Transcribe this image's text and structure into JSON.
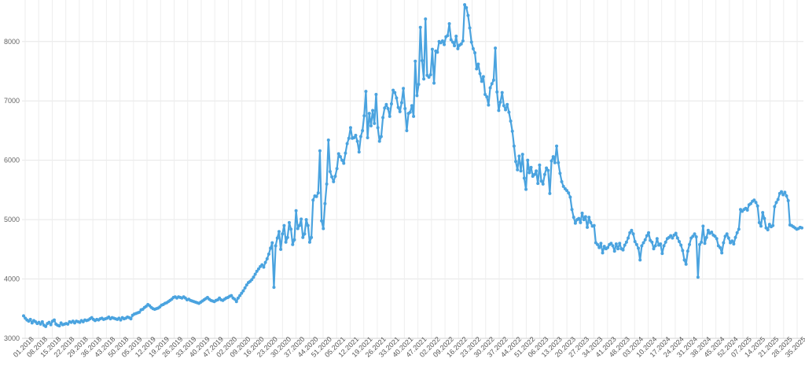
{
  "chart_data": {
    "type": "line",
    "title": "",
    "xlabel": "",
    "ylabel": "",
    "grid": true,
    "legend": "none",
    "ylim": [
      3000,
      8700
    ],
    "yticks": [
      3000,
      4000,
      5000,
      6000,
      7000,
      8000
    ],
    "x_tick_labels": [
      "01.2018",
      "08.2018",
      "15.2018",
      "22.2018",
      "29.2018",
      "36.2018",
      "43.2018",
      "50.2018",
      "05.2019",
      "12.2019",
      "19.2019",
      "26.2019",
      "33.2019",
      "40.2019",
      "47.2019",
      "02.2020",
      "09.2020",
      "16.2020",
      "23.2020",
      "30.2020",
      "37.2020",
      "44.2020",
      "51.2020",
      "05.2021",
      "12.2021",
      "19.2021",
      "26.2021",
      "33.2021",
      "40.2021",
      "47.2021",
      "02.2022",
      "09.2022",
      "16.2022",
      "23.2022",
      "30.2022",
      "37.2022",
      "44.2022",
      "51.2022",
      "06.2023",
      "13.2023",
      "20.2023",
      "27.2023",
      "34.2023",
      "41.2023",
      "48.2023",
      "03.2024",
      "10.2024",
      "17.2024",
      "24.2024",
      "31.2024",
      "38.2024",
      "45.2024",
      "52.2024",
      "07.2025",
      "14.2025",
      "21.2025",
      "28.2025",
      "35.2025"
    ],
    "line_color": "#4aa3df",
    "series": [
      {
        "values": [
          3380,
          3340,
          3310,
          3290,
          3320,
          3260,
          3300,
          3280,
          3250,
          3270,
          3240,
          3280,
          3220,
          3200,
          3250,
          3270,
          3230,
          3290,
          3310,
          3240,
          3220,
          3210,
          3260,
          3230,
          3240,
          3250,
          3240,
          3280,
          3270,
          3290,
          3260,
          3290,
          3280,
          3270,
          3300,
          3280,
          3310,
          3300,
          3310,
          3330,
          3350,
          3320,
          3300,
          3320,
          3310,
          3330,
          3340,
          3320,
          3330,
          3340,
          3360,
          3330,
          3350,
          3340,
          3330,
          3320,
          3340,
          3310,
          3350,
          3330,
          3340,
          3360,
          3350,
          3330,
          3390,
          3410,
          3420,
          3430,
          3440,
          3480,
          3490,
          3520,
          3540,
          3570,
          3550,
          3520,
          3500,
          3490,
          3500,
          3510,
          3530,
          3560,
          3570,
          3590,
          3600,
          3620,
          3640,
          3660,
          3690,
          3700,
          3680,
          3700,
          3690,
          3680,
          3700,
          3680,
          3650,
          3660,
          3640,
          3630,
          3620,
          3610,
          3600,
          3590,
          3610,
          3630,
          3650,
          3670,
          3690,
          3660,
          3640,
          3630,
          3620,
          3640,
          3650,
          3680,
          3650,
          3640,
          3660,
          3680,
          3690,
          3710,
          3720,
          3680,
          3660,
          3620,
          3680,
          3720,
          3760,
          3800,
          3850,
          3900,
          3940,
          3960,
          3990,
          4030,
          4080,
          4130,
          4170,
          4210,
          4240,
          4200,
          4280,
          4340,
          4420,
          4520,
          4610,
          3860,
          4560,
          4690,
          4800,
          4500,
          4760,
          4900,
          4620,
          4700,
          4950,
          4840,
          4580,
          4660,
          5150,
          4850,
          4900,
          5010,
          4700,
          4760,
          5000,
          4900,
          4620,
          4700,
          5330,
          5400,
          5390,
          5450,
          6160,
          4980,
          4850,
          5270,
          5600,
          6340,
          5810,
          5720,
          5640,
          5730,
          5860,
          6110,
          6060,
          6000,
          5950,
          6120,
          6280,
          6370,
          6550,
          6370,
          6380,
          6420,
          6320,
          6140,
          6400,
          6500,
          6750,
          7160,
          6380,
          6790,
          6580,
          6840,
          6620,
          7110,
          6550,
          6320,
          6400,
          6720,
          6880,
          6940,
          6870,
          6740,
          6950,
          7180,
          7140,
          7050,
          6890,
          6820,
          6970,
          7210,
          6870,
          6500,
          6790,
          6810,
          6920,
          6740,
          7670,
          7090,
          7280,
          8240,
          7680,
          7370,
          8380,
          7430,
          7400,
          7440,
          7870,
          7300,
          7840,
          7820,
          8000,
          7980,
          8010,
          7950,
          8080,
          8100,
          8300,
          8030,
          7990,
          7930,
          8090,
          7880,
          7940,
          7960,
          8010,
          8620,
          8570,
          8440,
          8230,
          7990,
          7880,
          7810,
          7540,
          7620,
          7460,
          7330,
          7410,
          7110,
          7070,
          6930,
          7220,
          7290,
          7350,
          7890,
          7150,
          6840,
          6980,
          7140,
          6920,
          6850,
          6940,
          6810,
          6660,
          6490,
          6240,
          5980,
          5840,
          6070,
          5820,
          6100,
          5700,
          5510,
          6000,
          5790,
          5880,
          5730,
          5760,
          5820,
          5610,
          5920,
          5650,
          5600,
          5760,
          5870,
          5830,
          5440,
          5990,
          6060,
          5960,
          6240,
          5960,
          5780,
          5640,
          5560,
          5520,
          5490,
          5450,
          5380,
          5170,
          5040,
          4940,
          5000,
          5020,
          4950,
          5110,
          5000,
          5050,
          4870,
          5040,
          4950,
          4890,
          4900,
          4610,
          4580,
          4530,
          4600,
          4440,
          4550,
          4510,
          4530,
          4580,
          4600,
          4560,
          4470,
          4590,
          4510,
          4600,
          4510,
          4490,
          4570,
          4620,
          4690,
          4780,
          4820,
          4760,
          4630,
          4580,
          4520,
          4320,
          4560,
          4610,
          4660,
          4730,
          4780,
          4650,
          4620,
          4510,
          4560,
          4680,
          4570,
          4590,
          4430,
          4560,
          4620,
          4680,
          4700,
          4730,
          4690,
          4740,
          4770,
          4690,
          4630,
          4570,
          4480,
          4320,
          4250,
          4470,
          4580,
          4690,
          4720,
          4760,
          4710,
          4030,
          4580,
          4620,
          4890,
          4600,
          4700,
          4820,
          4770,
          4790,
          4740,
          4720,
          4680,
          4560,
          4530,
          4440,
          4610,
          4720,
          4760,
          4690,
          4610,
          4640,
          4590,
          4700,
          4780,
          4840,
          5170,
          5140,
          5170,
          5190,
          5160,
          5250,
          5270,
          5310,
          5330,
          5290,
          5230,
          4950,
          4890,
          5120,
          5020,
          4860,
          4830,
          4920,
          4880,
          4900,
          5220,
          5290,
          5340,
          5440,
          5470,
          5420,
          5460,
          5400,
          5320,
          4910,
          4900,
          4880,
          4860,
          4840,
          4850,
          4870,
          4860
        ]
      }
    ]
  }
}
